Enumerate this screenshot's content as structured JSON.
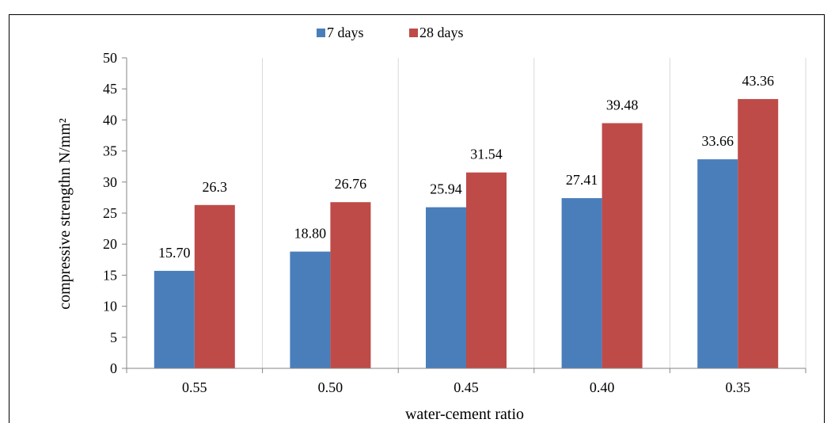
{
  "chart_data": {
    "type": "bar",
    "xlabel": "water-cement ratio",
    "ylabel": "compressive strengthn N/mm²",
    "categories": [
      "0.55",
      "0.50",
      "0.45",
      "0.40",
      "0.35"
    ],
    "series": [
      {
        "name": "7 days",
        "values": [
          15.7,
          18.8,
          25.94,
          27.41,
          33.66
        ],
        "labels": [
          "15.70",
          "18.80",
          "25.94",
          "27.41",
          "33.66"
        ],
        "color": "#4a7ebb"
      },
      {
        "name": "28 days",
        "values": [
          26.3,
          26.76,
          31.54,
          39.48,
          43.36
        ],
        "labels": [
          "26.3",
          "26.76",
          "31.54",
          "39.48",
          "43.36"
        ],
        "color": "#be4b48"
      }
    ],
    "ylim": [
      0,
      50
    ],
    "yticks": [
      "0",
      "5",
      "10",
      "15",
      "20",
      "25",
      "30",
      "35",
      "40",
      "45",
      "50"
    ],
    "legend": "top",
    "grid": "vertical category separators"
  }
}
